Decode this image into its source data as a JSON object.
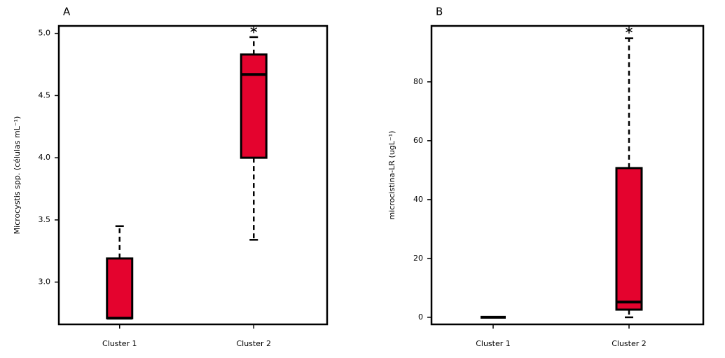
{
  "chart_data": [
    {
      "type": "box",
      "panel_label": "A",
      "y_label": "Microcystis spp. (células mL⁻¹)",
      "categories": [
        "Cluster 1",
        "Cluster 2"
      ],
      "color": "#e4032e",
      "boxes": [
        {
          "min": 2.71,
          "q1": 2.71,
          "median": 2.71,
          "q3": 3.19,
          "max": 3.45,
          "outliers": []
        },
        {
          "min": 3.34,
          "q1": 4.0,
          "median": 4.67,
          "q3": 4.83,
          "max": 4.97,
          "outliers": [
            5.03
          ]
        }
      ],
      "ylim": [
        2.66,
        5.06
      ],
      "yticks": [
        {
          "value": 3.0,
          "label": "3.0"
        },
        {
          "value": 3.5,
          "label": "3.5"
        },
        {
          "value": 4.0,
          "label": "4.0"
        },
        {
          "value": 4.5,
          "label": "4.5"
        },
        {
          "value": 5.0,
          "label": "5.0"
        }
      ]
    },
    {
      "type": "box",
      "panel_label": "B",
      "y_label": "microcistina-LR (ugL⁻¹)",
      "categories": [
        "Cluster 1",
        "Cluster 2"
      ],
      "color": "#e4032e",
      "boxes": [
        {
          "min": 0,
          "q1": 0,
          "median": 0,
          "q3": 0,
          "max": 0,
          "outliers": []
        },
        {
          "min": 0,
          "q1": 2.6,
          "median": 5.2,
          "q3": 50.7,
          "max": 94.8,
          "outliers": [
            97.6
          ]
        }
      ],
      "ylim": [
        -2.4,
        99
      ],
      "yticks": [
        0,
        20,
        40,
        60,
        80
      ]
    }
  ]
}
